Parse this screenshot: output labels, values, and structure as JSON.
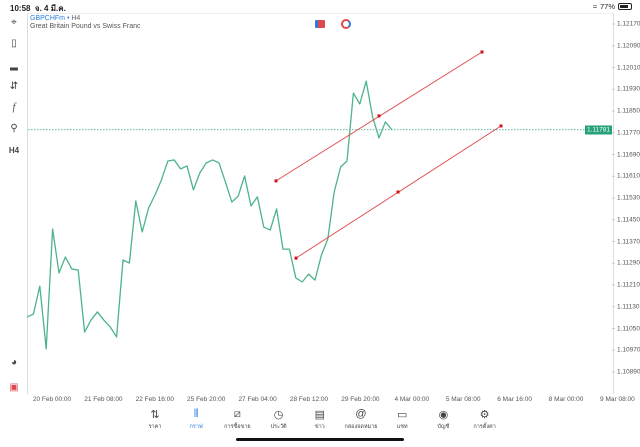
{
  "status_bar": {
    "time": "10:58",
    "date": "จ. 4 มี.ค.",
    "battery": "77%",
    "battery_level": 0.77
  },
  "chart_header": {
    "symbol": "GBPCHFm",
    "timeframe": "H4",
    "separator": "•",
    "description": "Great Britain Pound vs Swiss Franc"
  },
  "left_toolbar": {
    "items": [
      {
        "icon": "crosshair-icon"
      },
      {
        "icon": "candlestick-icon"
      },
      {
        "icon": "indicators-icon"
      },
      {
        "icon": "settings-sliders-icon"
      },
      {
        "icon": "function-icon"
      },
      {
        "icon": "objects-icon"
      },
      {
        "label": "H4"
      },
      {
        "icon": "zoom-chart-icon"
      },
      {
        "icon": "one-click-trading-icon"
      }
    ]
  },
  "colors": {
    "line": "#4db38a",
    "trendline": "#e0484f",
    "current_price_bg": "#26a17b",
    "accent": "#2a7de1"
  },
  "chart_data": {
    "type": "line",
    "price_ticks": [
      "1.12170",
      "1.12090",
      "1.12010",
      "1.11930",
      "1.11850",
      "1.11770",
      "1.11690",
      "1.11610",
      "1.11530",
      "1.11450",
      "1.11370",
      "1.11290",
      "1.11210",
      "1.11130",
      "1.11050",
      "1.10970",
      "1.10890"
    ],
    "ylim": [
      1.1085,
      1.1221
    ],
    "time_ticks": [
      "20 Feb 00:00",
      "21 Feb 08:00",
      "22 Feb 16:00",
      "25 Feb 20:00",
      "27 Feb 04:00",
      "28 Feb 12:00",
      "29 Feb 20:00",
      "4 Mar 00:00",
      "5 Mar 08:00",
      "6 Mar 16:00",
      "8 Mar 00:00",
      "9 Mar 08:00"
    ],
    "current_price": "1.11781",
    "values": [
      1.11092,
      1.11103,
      1.11206,
      1.10975,
      1.11416,
      1.11254,
      1.11313,
      1.11269,
      1.11265,
      1.11037,
      1.11081,
      1.11111,
      1.11081,
      1.11056,
      1.11019,
      1.11302,
      1.11291,
      1.11519,
      1.11405,
      1.11493,
      1.11541,
      1.11596,
      1.11666,
      1.1167,
      1.11637,
      1.11648,
      1.1156,
      1.11622,
      1.11659,
      1.1167,
      1.11659,
      1.11589,
      1.11515,
      1.11537,
      1.11611,
      1.11501,
      1.11534,
      1.11423,
      1.11412,
      1.1149,
      1.11342,
      1.11342,
      1.11236,
      1.11221,
      1.1125,
      1.11228,
      1.1132,
      1.11379,
      1.11552,
      1.11644,
      1.11666,
      1.11916,
      1.11876,
      1.1196,
      1.11828,
      1.11751,
      1.1181,
      1.11781
    ],
    "trendlines": [
      {
        "points": [
          1.11593,
          1.11832,
          1.12067
        ]
      },
      {
        "points": [
          1.11309,
          1.11552,
          1.11795
        ]
      }
    ]
  },
  "tab_bar": {
    "active": 1,
    "items": [
      {
        "label": "ราคา",
        "icon": "quotes-icon"
      },
      {
        "label": "กราฟ",
        "icon": "chart-icon"
      },
      {
        "label": "การซื้อขาย",
        "icon": "trade-icon"
      },
      {
        "label": "ประวัติ",
        "icon": "history-icon"
      },
      {
        "label": "ข่าว",
        "icon": "news-icon"
      },
      {
        "label": "กล่องจดหมาย",
        "icon": "mailbox-icon"
      },
      {
        "label": "แชท",
        "icon": "chat-icon"
      },
      {
        "label": "บัญชี",
        "icon": "account-icon"
      },
      {
        "label": "การตั้งค่า",
        "icon": "settings-icon"
      }
    ]
  }
}
